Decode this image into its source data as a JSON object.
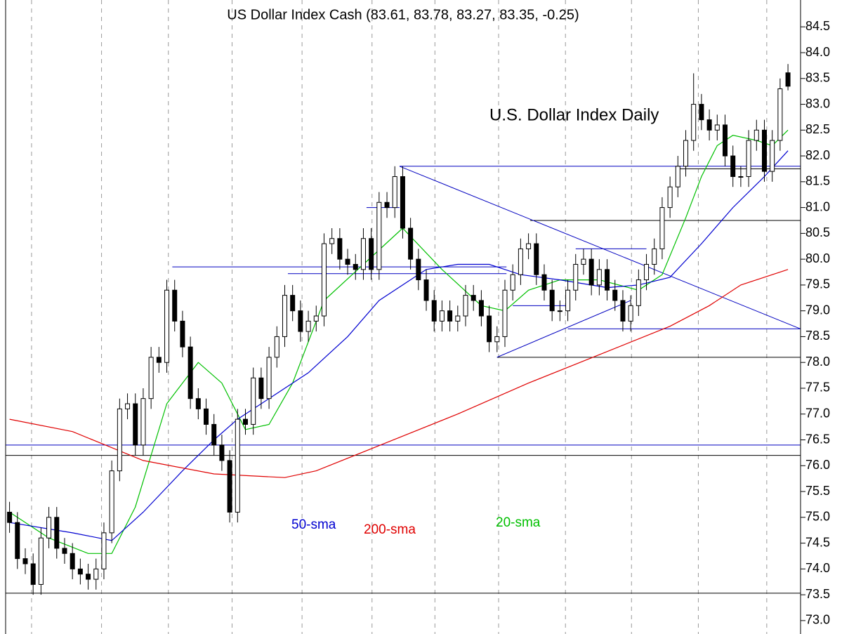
{
  "chart_data": {
    "type": "candlestick",
    "title": "US Dollar Index Cash (83.61, 83.78, 83.27, 83.35, -0.25)",
    "annotation": "U.S. Dollar Index Daily",
    "xlim": [
      -0.5,
      100.6
    ],
    "xticks": [
      2.8,
      11.7,
      20.2,
      28.3,
      37.2,
      46.1,
      54.1,
      62.2,
      70.7,
      79.1,
      87.6,
      96.3
    ],
    "grid": true,
    "ylim": [
      72.74,
      85.02
    ],
    "yticks": [
      {
        "value": 73,
        "label": "73.0"
      },
      73.5,
      {
        "value": 74,
        "label": "74.0"
      },
      74.5,
      {
        "value": 75,
        "label": "75.0"
      },
      75.5,
      {
        "value": 76,
        "label": "76.0"
      },
      76.5,
      {
        "value": 77,
        "label": "77.0"
      },
      77.5,
      {
        "value": 78,
        "label": "78.0"
      },
      78.5,
      {
        "value": 79,
        "label": "79.0"
      },
      79.5,
      {
        "value": 80,
        "label": "80.0"
      },
      80.5,
      {
        "value": 81,
        "label": "81.0"
      },
      81.5,
      {
        "value": 82,
        "label": "82.0"
      },
      82.5,
      {
        "value": 83,
        "label": "83.0"
      },
      83.5,
      {
        "value": 84,
        "label": "84.0"
      },
      84.5
    ],
    "open": [
      75.1,
      74.9,
      74.2,
      74.1,
      73.7,
      74.6,
      75.0,
      74.4,
      74.3,
      74.0,
      73.9,
      73.8,
      74.0,
      74.7,
      75.9,
      77.1,
      77.2,
      76.4,
      77.3,
      78.1,
      78.0,
      79.4,
      78.8,
      78.3,
      77.3,
      77.1,
      76.8,
      76.4,
      76.1,
      75.1,
      76.9,
      76.8,
      77.7,
      77.3,
      78.1,
      78.5,
      79.3,
      79.0,
      78.6,
      78.8,
      78.9,
      80.3,
      80.4,
      80.0,
      79.9,
      79.8,
      80.4,
      79.8,
      81.1,
      81.0,
      81.6,
      80.6,
      80.0,
      79.6,
      79.2,
      78.8,
      79.0,
      78.8,
      78.9,
      79.3,
      79.2,
      78.9,
      78.4,
      78.5,
      79.4,
      79.7,
      80.2,
      80.3,
      79.7,
      79.4,
      79.0,
      79.0,
      79.4,
      79.9,
      80.0,
      79.5,
      79.8,
      79.4,
      79.2,
      78.8,
      79.1,
      79.6,
      79.9,
      80.2,
      81.0,
      81.4,
      81.8,
      82.3,
      83.0,
      82.7,
      82.5,
      82.6,
      82.0,
      81.6,
      81.6,
      82.3,
      82.5,
      81.7,
      82.3,
      83.61
    ],
    "high": [
      75.3,
      75.1,
      74.4,
      74.3,
      74.8,
      75.2,
      75.2,
      74.6,
      74.5,
      74.2,
      74.1,
      74.2,
      74.9,
      76.1,
      77.3,
      77.4,
      77.4,
      77.5,
      78.3,
      78.3,
      79.6,
      79.6,
      79.0,
      78.5,
      77.5,
      77.3,
      77.0,
      76.6,
      76.3,
      77.1,
      77.1,
      77.9,
      77.9,
      78.3,
      78.7,
      79.5,
      79.5,
      79.2,
      79.0,
      79.1,
      80.5,
      80.6,
      80.6,
      80.2,
      80.1,
      80.6,
      80.6,
      81.3,
      81.3,
      81.8,
      81.8,
      80.8,
      80.2,
      79.8,
      79.4,
      79.2,
      79.2,
      79.1,
      79.5,
      79.5,
      79.4,
      79.1,
      78.7,
      79.6,
      79.9,
      80.4,
      80.5,
      80.5,
      79.9,
      79.6,
      79.2,
      79.6,
      80.1,
      80.2,
      80.2,
      80.0,
      80.0,
      79.6,
      79.4,
      79.3,
      79.8,
      80.1,
      80.4,
      81.2,
      81.6,
      82.0,
      82.5,
      83.6,
      83.2,
      82.9,
      82.8,
      82.8,
      82.2,
      81.8,
      82.5,
      82.7,
      82.7,
      82.5,
      83.5,
      83.78
    ],
    "low": [
      74.7,
      74.0,
      73.9,
      73.5,
      73.5,
      74.4,
      74.2,
      74.1,
      73.8,
      73.7,
      73.6,
      73.6,
      73.8,
      74.5,
      75.7,
      76.9,
      76.2,
      76.2,
      77.1,
      77.8,
      77.8,
      78.6,
      78.1,
      77.1,
      76.9,
      76.6,
      76.2,
      75.9,
      74.9,
      74.9,
      76.6,
      76.6,
      77.1,
      77.1,
      77.9,
      78.3,
      78.8,
      78.4,
      78.4,
      78.6,
      78.7,
      80.1,
      79.8,
      79.7,
      79.6,
      79.6,
      79.6,
      79.6,
      80.8,
      80.8,
      80.4,
      79.8,
      79.4,
      79.0,
      78.6,
      78.6,
      78.6,
      78.6,
      78.7,
      79.0,
      78.7,
      78.2,
      78.2,
      78.3,
      79.2,
      79.5,
      80.0,
      79.5,
      79.2,
      78.8,
      78.8,
      78.8,
      79.2,
      79.7,
      79.3,
      79.3,
      79.2,
      79.0,
      78.6,
      78.6,
      78.9,
      79.4,
      79.7,
      80.0,
      80.8,
      81.2,
      81.6,
      82.1,
      82.5,
      82.3,
      82.3,
      81.8,
      81.4,
      81.4,
      81.4,
      82.1,
      81.5,
      81.5,
      82.1,
      83.27
    ],
    "close": [
      74.9,
      74.2,
      74.1,
      73.7,
      74.6,
      75.0,
      74.4,
      74.3,
      74.0,
      73.9,
      73.8,
      74.0,
      74.7,
      75.9,
      77.1,
      77.2,
      76.4,
      77.3,
      78.1,
      78.0,
      79.4,
      78.8,
      78.3,
      77.3,
      77.1,
      76.8,
      76.4,
      76.1,
      75.1,
      76.9,
      76.8,
      77.7,
      77.3,
      78.1,
      78.5,
      79.3,
      79.0,
      78.6,
      78.8,
      78.9,
      80.3,
      80.4,
      80.0,
      79.9,
      79.8,
      80.4,
      79.8,
      81.1,
      81.0,
      81.6,
      80.6,
      80.0,
      79.6,
      79.2,
      78.8,
      79.0,
      78.8,
      78.9,
      79.3,
      79.2,
      78.9,
      78.4,
      78.5,
      79.4,
      79.7,
      80.2,
      80.3,
      79.7,
      79.4,
      79.0,
      79.0,
      79.4,
      79.9,
      80.0,
      79.5,
      79.8,
      79.4,
      79.2,
      78.8,
      79.1,
      79.6,
      79.9,
      80.2,
      81.0,
      81.4,
      81.8,
      82.3,
      83.0,
      82.7,
      82.5,
      82.6,
      82.0,
      81.6,
      81.6,
      82.3,
      82.5,
      81.7,
      82.3,
      83.3,
      83.35
    ],
    "series": [
      {
        "name": "20-sma",
        "color": "#00c000",
        "x": [
          0,
          5,
          10,
          13,
          16,
          20,
          24,
          27,
          30,
          33,
          36,
          40,
          45,
          50,
          55,
          60,
          63,
          66,
          70,
          75,
          80,
          83,
          86,
          88,
          90,
          92,
          95,
          97,
          99
        ],
        "values": [
          75.1,
          74.6,
          74.3,
          74.3,
          75.2,
          77.2,
          78.0,
          77.6,
          76.7,
          76.8,
          77.6,
          79.2,
          79.9,
          80.6,
          79.8,
          79.1,
          79.0,
          79.4,
          79.6,
          79.6,
          79.4,
          79.7,
          80.8,
          81.6,
          82.2,
          82.4,
          82.3,
          82.2,
          82.5
        ]
      },
      {
        "name": "50-sma",
        "color": "#0000d0",
        "x": [
          0,
          8,
          13,
          17,
          22,
          26,
          29,
          33,
          38,
          43,
          47,
          50,
          53,
          57,
          61,
          65,
          70,
          76,
          80,
          84,
          88,
          92,
          96,
          99
        ],
        "values": [
          74.9,
          74.7,
          74.55,
          75.1,
          75.9,
          76.5,
          76.9,
          77.3,
          77.8,
          78.5,
          79.2,
          79.5,
          79.8,
          79.9,
          79.9,
          79.7,
          79.6,
          79.45,
          79.5,
          79.65,
          80.3,
          81.0,
          81.6,
          82.1
        ]
      },
      {
        "name": "200-sma",
        "color": "#e00000",
        "x": [
          0,
          8,
          17,
          26,
          35,
          39,
          48,
          57,
          66,
          75,
          84,
          89,
          93,
          99
        ],
        "values": [
          76.9,
          76.66,
          76.1,
          75.84,
          75.77,
          75.9,
          76.45,
          77.0,
          77.6,
          78.15,
          78.7,
          79.1,
          79.5,
          79.8
        ]
      }
    ],
    "levels": [
      {
        "value": 81.8,
        "from": 49.6,
        "color": "#0000c0"
      },
      {
        "value": 81.75,
        "from": 85,
        "color": "#000000"
      },
      {
        "value": 80.75,
        "from": 66.2,
        "color": "#000000"
      },
      {
        "value": 81.0,
        "from": 45.4,
        "to": 49.6,
        "color": "#0000c0"
      },
      {
        "value": 79.85,
        "from": 20.7,
        "to": 63.2,
        "color": "#0000c0"
      },
      {
        "value": 79.72,
        "from": 35.4,
        "to": 63.2,
        "color": "#0000c0"
      },
      {
        "value": 80.2,
        "from": 72.0,
        "to": 81.0,
        "color": "#0000c0"
      },
      {
        "value": 79.1,
        "from": 64.0,
        "to": 71.0,
        "color": "#0000c0"
      },
      {
        "value": 78.65,
        "from": 71.0,
        "color": "#0000c0"
      },
      {
        "value": 78.1,
        "from": 62.0,
        "color": "#000000"
      },
      {
        "value": 76.4,
        "color": "#0000c0"
      },
      {
        "value": 76.2,
        "color": "#000000"
      },
      {
        "value": 73.53,
        "color": "#000000"
      }
    ],
    "trendlines": [
      {
        "x": [
          49.6,
          100.6
        ],
        "y": [
          81.8,
          78.65
        ],
        "color": "#0000c0"
      },
      {
        "x": [
          62.0,
          79.0
        ],
        "y": [
          78.1,
          79.2
        ],
        "color": "#0000c0"
      }
    ]
  }
}
